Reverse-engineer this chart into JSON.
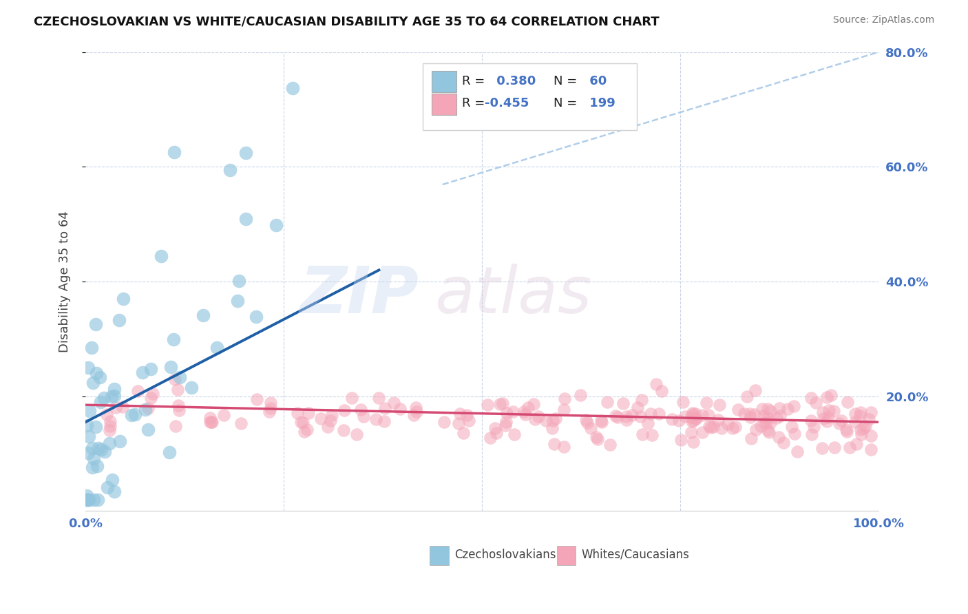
{
  "title": "CZECHOSLOVAKIAN VS WHITE/CAUCASIAN DISABILITY AGE 35 TO 64 CORRELATION CHART",
  "source_text": "Source: ZipAtlas.com",
  "ylabel": "Disability Age 35 to 64",
  "xlim": [
    0,
    1.0
  ],
  "ylim": [
    0,
    0.8
  ],
  "ytick_positions": [
    0.2,
    0.4,
    0.6,
    0.8
  ],
  "ytick_labels": [
    "20.0%",
    "40.0%",
    "60.0%",
    "80.0%"
  ],
  "xtick_positions": [
    0.0,
    1.0
  ],
  "xtick_labels": [
    "0.0%",
    "100.0%"
  ],
  "blue_R": 0.38,
  "blue_N": 60,
  "pink_R": -0.455,
  "pink_N": 199,
  "blue_color": "#92c5de",
  "pink_color": "#f4a6b8",
  "blue_line_color": "#1f5fa6",
  "pink_line_color": "#d44a72",
  "ref_line_color": "#a8c8e8",
  "watermark_zip": "ZIP",
  "watermark_atlas": "atlas",
  "legend_label_blue": "Czechoslovakians",
  "legend_label_pink": "Whites/Caucasians",
  "background_color": "#ffffff",
  "grid_color": "#c8d4e8",
  "title_color": "#111111",
  "source_color": "#777777",
  "axis_label_color": "#444444",
  "tick_label_color": "#4472c4",
  "legend_border_color": "#d0d0d0",
  "legend_sq_blue_fill": "#92c5de",
  "legend_sq_pink_fill": "#f4a6b8",
  "legend_sq_border": "#aaaaaa"
}
